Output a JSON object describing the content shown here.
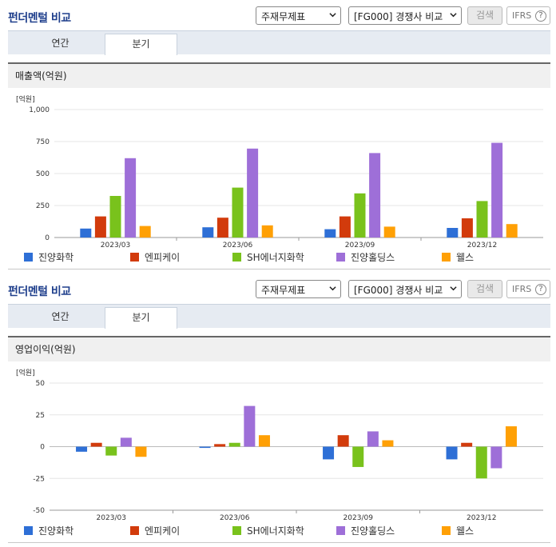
{
  "header": {
    "title": "펀더멘털 비교",
    "select_statement": "주재무제표",
    "select_peer": "[FG000] 경쟁사 비교",
    "search_label": "검색",
    "ifrs_label": "IFRS",
    "help_glyph": "?"
  },
  "tabs": {
    "annual": "연간",
    "quarterly": "분기"
  },
  "colors": [
    "#2e6fd6",
    "#d23b0c",
    "#79c21c",
    "#9e6fd8",
    "#ffa005"
  ],
  "legend": [
    "진양화학",
    "엔피케이",
    "SH에너지화학",
    "진양홀딩스",
    "웰스"
  ],
  "chart_data": [
    {
      "type": "bar",
      "title": "매출액(억원)",
      "unit": "[억원]",
      "categories": [
        "2023/03",
        "2023/06",
        "2023/09",
        "2023/12"
      ],
      "ylim": [
        0,
        1000
      ],
      "yticks": [
        0,
        250,
        500,
        750,
        1000
      ],
      "ytick_labels": [
        "0",
        "250",
        "500",
        "750",
        "1,000"
      ],
      "grid": true,
      "legend_position": "bottom",
      "series": [
        {
          "name": "진양화학",
          "values": [
            70,
            80,
            65,
            75
          ]
        },
        {
          "name": "엔피케이",
          "values": [
            165,
            155,
            165,
            150
          ]
        },
        {
          "name": "SH에너지화학",
          "values": [
            325,
            390,
            345,
            285
          ]
        },
        {
          "name": "진양홀딩스",
          "values": [
            620,
            695,
            660,
            740
          ]
        },
        {
          "name": "웰스",
          "values": [
            90,
            95,
            85,
            105
          ]
        }
      ]
    },
    {
      "type": "bar",
      "title": "영업이익(억원)",
      "unit": "[억원]",
      "categories": [
        "2023/03",
        "2023/06",
        "2023/09",
        "2023/12"
      ],
      "ylim": [
        -50,
        50
      ],
      "yticks": [
        -50,
        -25,
        0,
        25,
        50
      ],
      "ytick_labels": [
        "-50",
        "-25",
        "0",
        "25",
        "50"
      ],
      "grid": true,
      "legend_position": "bottom",
      "series": [
        {
          "name": "진양화학",
          "values": [
            -4,
            -1,
            -10,
            -10
          ]
        },
        {
          "name": "엔피케이",
          "values": [
            3,
            2,
            9,
            3
          ]
        },
        {
          "name": "SH에너지화학",
          "values": [
            -7,
            3,
            -16,
            -25
          ]
        },
        {
          "name": "진양홀딩스",
          "values": [
            7,
            32,
            12,
            -17
          ]
        },
        {
          "name": "웰스",
          "values": [
            -8,
            9,
            5,
            16
          ]
        }
      ]
    }
  ]
}
